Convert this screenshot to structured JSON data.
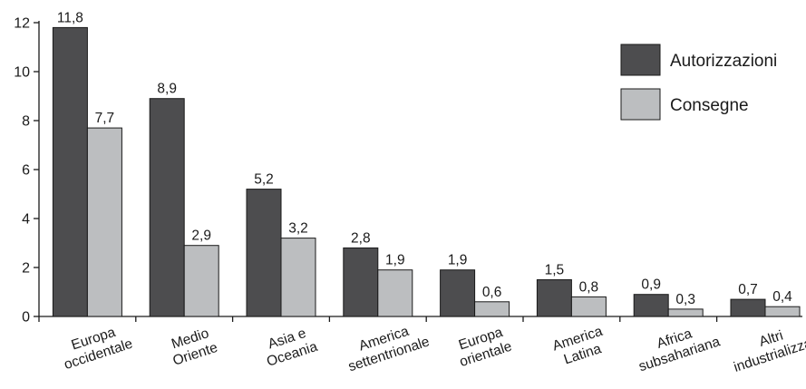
{
  "chart_data": {
    "type": "bar",
    "categories": [
      [
        "Europa",
        "occidentale"
      ],
      [
        "Medio",
        "Oriente"
      ],
      [
        "Asia e",
        "Oceania"
      ],
      [
        "America",
        "settentrionale"
      ],
      [
        "Europa",
        "orientale"
      ],
      [
        "America",
        "Latina"
      ],
      [
        "Africa",
        "subsahariana"
      ],
      [
        "Altri",
        "industrializzati"
      ]
    ],
    "series": [
      {
        "name": "Autorizzazioni",
        "color": "#4d4d4f",
        "values": [
          11.8,
          8.9,
          5.2,
          2.8,
          1.9,
          1.5,
          0.9,
          0.7
        ],
        "labels": [
          "11,8",
          "8,9",
          "5,2",
          "2,8",
          "1,9",
          "1,5",
          "0,9",
          "0,7"
        ]
      },
      {
        "name": "Consegne",
        "color": "#bcbec0",
        "values": [
          7.7,
          2.9,
          3.2,
          1.9,
          0.6,
          0.8,
          0.3,
          0.4
        ],
        "labels": [
          "7,7",
          "2,9",
          "3,2",
          "1,9",
          "0,6",
          "0,8",
          "0,3",
          "0,4"
        ]
      }
    ],
    "yticks": [
      "0",
      "2",
      "4",
      "6",
      "8",
      "10",
      "12"
    ],
    "ylim": [
      0,
      12
    ],
    "title": "",
    "xlabel": "",
    "ylabel": "",
    "grid": false,
    "legend": "top-right"
  }
}
